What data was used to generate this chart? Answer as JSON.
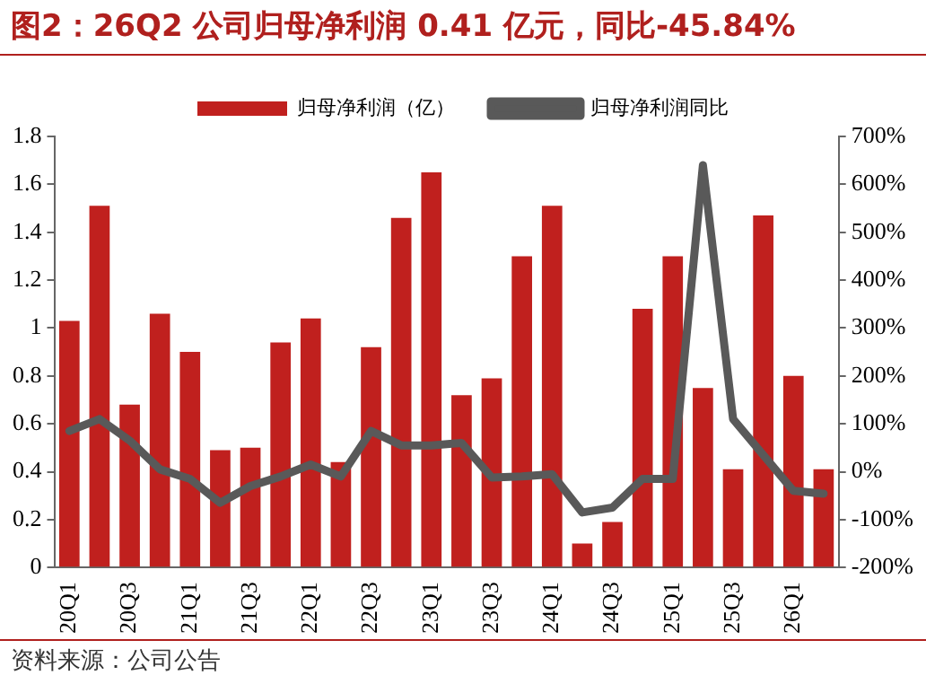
{
  "chart_data": {
    "type": "bar",
    "title": "图2：26Q2 公司归母净利润 0.41 亿元，同比-45.84%",
    "categories": [
      "20Q1",
      null,
      "20Q3",
      null,
      "21Q1",
      null,
      "21Q3",
      null,
      "22Q1",
      null,
      "22Q3",
      null,
      "23Q1",
      null,
      "23Q3",
      null,
      "24Q1",
      null,
      "24Q3",
      null,
      "25Q1",
      null,
      "25Q3",
      null,
      "26Q1",
      null
    ],
    "series": [
      {
        "name": "归母净利润（亿）",
        "color": "#c0201e",
        "values": [
          1.03,
          1.51,
          0.68,
          1.06,
          0.9,
          0.49,
          0.5,
          0.94,
          1.04,
          0.44,
          0.92,
          1.46,
          1.65,
          0.72,
          0.79,
          1.3,
          1.51,
          0.1,
          0.19,
          1.08,
          1.3,
          0.75,
          0.41,
          1.47,
          0.8,
          0.41
        ]
      },
      {
        "name": "归母净利润同比",
        "type": "line",
        "axis": "y2",
        "color": "#595959",
        "values": [
          85,
          110,
          65,
          5,
          -15,
          -65,
          -30,
          -10,
          15,
          -10,
          85,
          55,
          55,
          60,
          -12,
          -10,
          -5,
          -85,
          -75,
          -15,
          -15,
          640,
          110,
          35,
          -40,
          -45.84
        ]
      }
    ],
    "ylim": [
      0,
      1.8
    ],
    "yticks": [
      0,
      0.2,
      0.4,
      0.6,
      0.8,
      1,
      1.2,
      1.4,
      1.6,
      1.8
    ],
    "y2lim": [
      -200,
      700
    ],
    "y2ticks": [
      {
        "value": -200,
        "label": "-200%"
      },
      {
        "value": -100,
        "label": "-100%"
      },
      {
        "value": 0,
        "label": "0%"
      },
      {
        "value": 100,
        "label": "100%"
      },
      {
        "value": 200,
        "label": "200%"
      },
      {
        "value": 300,
        "label": "300%"
      },
      {
        "value": 400,
        "label": "400%"
      },
      {
        "value": 500,
        "label": "500%"
      },
      {
        "value": 600,
        "label": "600%"
      },
      {
        "value": 700,
        "label": "700%"
      }
    ],
    "grid": false,
    "legend": "top",
    "marker": "none",
    "line_style": "solid",
    "annotations": [
      "资料来源：公司公告"
    ]
  }
}
